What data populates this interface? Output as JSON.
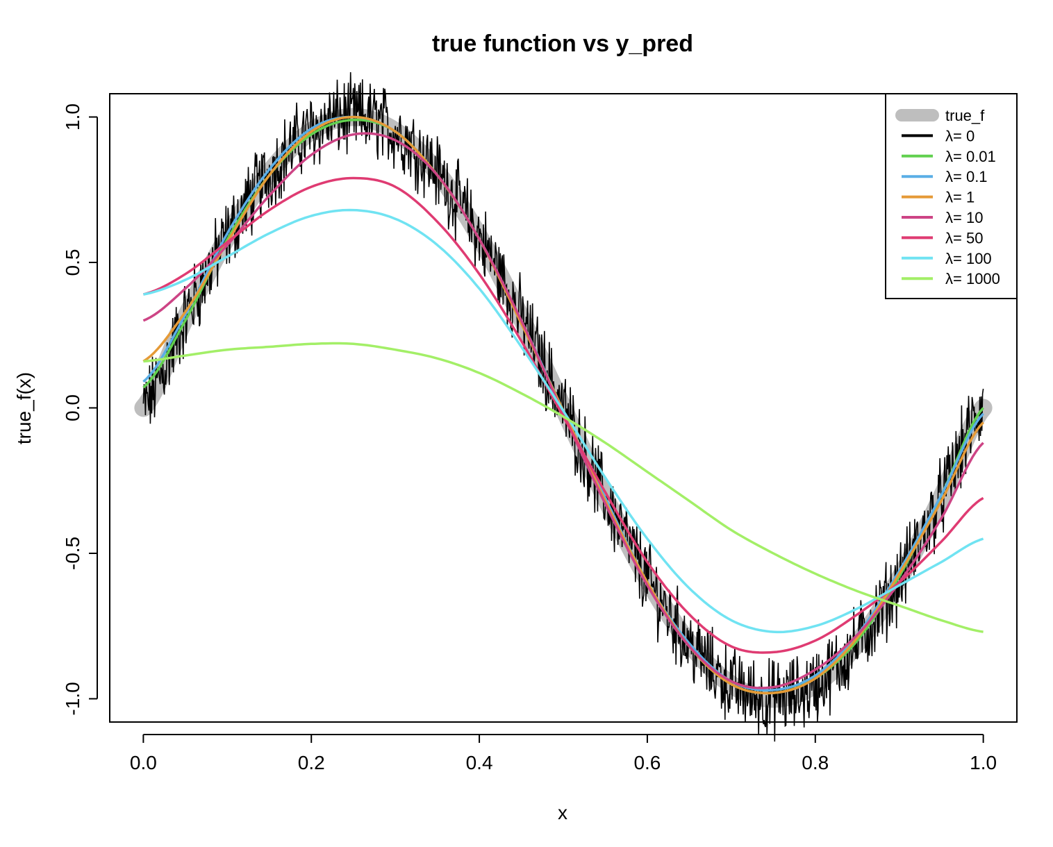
{
  "chart_data": {
    "type": "line",
    "title": "true function vs y_pred",
    "xlabel": "x",
    "ylabel": "true_f(x)",
    "xlim": [
      -0.04,
      1.04
    ],
    "ylim": [
      -1.08,
      1.08
    ],
    "x_ticks": [
      0.0,
      0.2,
      0.4,
      0.6,
      0.8,
      1.0
    ],
    "x_tick_labels": [
      "0.0",
      "0.2",
      "0.4",
      "0.6",
      "0.8",
      "1.0"
    ],
    "y_ticks": [
      -1.0,
      -0.5,
      0.0,
      0.5,
      1.0
    ],
    "y_tick_labels": [
      "-1.0",
      "-0.5",
      "0.0",
      "0.5",
      "1.0"
    ],
    "grid": false,
    "legend_position": "top-right",
    "x": [
      0.0,
      0.05,
      0.1,
      0.15,
      0.2,
      0.25,
      0.3,
      0.35,
      0.4,
      0.45,
      0.5,
      0.55,
      0.6,
      0.65,
      0.7,
      0.75,
      0.8,
      0.85,
      0.9,
      0.95,
      1.0
    ],
    "true_function": {
      "name": "true_f",
      "color": "#bebebe",
      "values": [
        0.0,
        0.309,
        0.588,
        0.809,
        0.951,
        1.0,
        0.951,
        0.809,
        0.588,
        0.309,
        0.0,
        -0.309,
        -0.588,
        -0.809,
        -0.951,
        -1.0,
        -0.951,
        -0.809,
        -0.588,
        -0.309,
        0.0
      ]
    },
    "series": [
      {
        "name": "λ= 0",
        "color": "#000000",
        "noisy": true,
        "values": [
          0.0,
          0.309,
          0.588,
          0.809,
          0.951,
          1.0,
          0.951,
          0.809,
          0.588,
          0.309,
          0.0,
          -0.309,
          -0.588,
          -0.809,
          -0.951,
          -1.0,
          -0.951,
          -0.809,
          -0.588,
          -0.309,
          0.0
        ]
      },
      {
        "name": "λ= 0.01",
        "color": "#61d04f",
        "values": [
          0.07,
          0.3,
          0.58,
          0.8,
          0.94,
          0.99,
          0.95,
          0.8,
          0.58,
          0.3,
          -0.01,
          -0.31,
          -0.6,
          -0.82,
          -0.95,
          -0.98,
          -0.93,
          -0.8,
          -0.58,
          -0.3,
          0.0
        ]
      },
      {
        "name": "λ= 0.1",
        "color": "#5aaee6",
        "values": [
          0.09,
          0.32,
          0.6,
          0.82,
          0.96,
          1.0,
          0.95,
          0.8,
          0.58,
          0.3,
          -0.01,
          -0.31,
          -0.6,
          -0.81,
          -0.94,
          -0.97,
          -0.92,
          -0.78,
          -0.56,
          -0.3,
          -0.02
        ]
      },
      {
        "name": "λ= 1",
        "color": "#e59a37",
        "values": [
          0.16,
          0.33,
          0.57,
          0.8,
          0.95,
          1.0,
          0.95,
          0.8,
          0.58,
          0.29,
          -0.01,
          -0.32,
          -0.6,
          -0.82,
          -0.95,
          -0.98,
          -0.93,
          -0.79,
          -0.57,
          -0.32,
          -0.05
        ]
      },
      {
        "name": "λ= 10",
        "color": "#cd4485",
        "values": [
          0.3,
          0.41,
          0.56,
          0.73,
          0.87,
          0.94,
          0.92,
          0.8,
          0.58,
          0.3,
          -0.02,
          -0.33,
          -0.61,
          -0.82,
          -0.94,
          -0.96,
          -0.9,
          -0.78,
          -0.6,
          -0.38,
          -0.12
        ]
      },
      {
        "name": "λ= 50",
        "color": "#df3b72",
        "values": [
          0.39,
          0.46,
          0.57,
          0.68,
          0.76,
          0.79,
          0.76,
          0.64,
          0.46,
          0.23,
          -0.03,
          -0.29,
          -0.53,
          -0.71,
          -0.82,
          -0.84,
          -0.8,
          -0.71,
          -0.6,
          -0.46,
          -0.31
        ]
      },
      {
        "name": "λ= 100",
        "color": "#70e3f2",
        "values": [
          0.39,
          0.44,
          0.52,
          0.6,
          0.66,
          0.68,
          0.65,
          0.56,
          0.41,
          0.21,
          -0.01,
          -0.24,
          -0.45,
          -0.62,
          -0.73,
          -0.77,
          -0.75,
          -0.69,
          -0.61,
          -0.53,
          -0.45
        ]
      },
      {
        "name": "λ= 1000",
        "color": "#a3ef67",
        "values": [
          0.16,
          0.18,
          0.2,
          0.21,
          0.22,
          0.22,
          0.2,
          0.17,
          0.12,
          0.05,
          -0.03,
          -0.12,
          -0.22,
          -0.32,
          -0.42,
          -0.5,
          -0.57,
          -0.63,
          -0.68,
          -0.73,
          -0.77
        ]
      }
    ]
  }
}
